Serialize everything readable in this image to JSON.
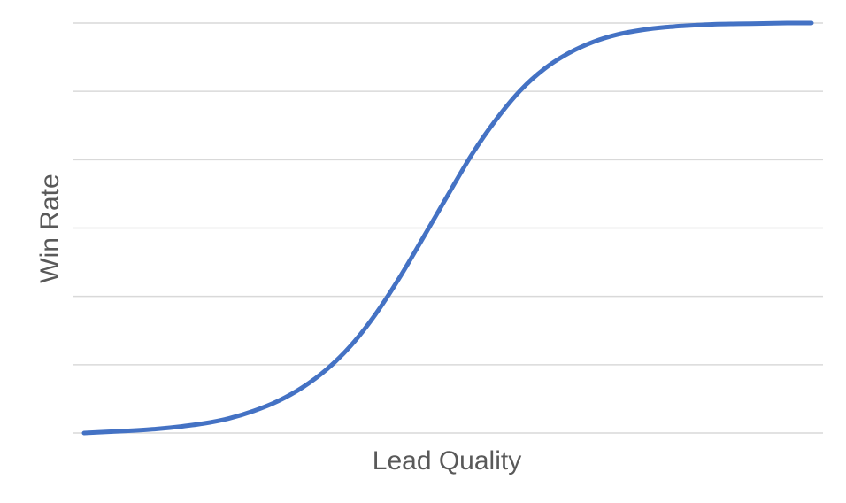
{
  "chart_data": {
    "type": "line",
    "title": "",
    "xlabel": "Lead Quality",
    "ylabel": "Win Rate",
    "x": [
      0,
      1,
      2,
      3,
      4,
      5,
      6,
      7,
      8,
      9,
      10,
      11,
      12,
      13,
      14,
      15,
      16,
      17,
      18,
      19,
      20,
      21,
      22,
      23,
      24,
      25,
      26,
      27,
      28,
      29,
      30
    ],
    "series": [
      {
        "values": [
          0.0,
          0.003,
          0.006,
          0.01,
          0.016,
          0.024,
          0.036,
          0.054,
          0.078,
          0.111,
          0.155,
          0.213,
          0.288,
          0.378,
          0.478,
          0.58,
          0.68,
          0.765,
          0.836,
          0.889,
          0.927,
          0.954,
          0.972,
          0.983,
          0.99,
          0.994,
          0.997,
          0.998,
          0.999,
          1.0,
          1.0
        ],
        "color": "#4472C4"
      }
    ],
    "ylim": [
      0,
      1.0
    ],
    "y_gridlines": [
      0,
      0.1667,
      0.3333,
      0.5,
      0.6667,
      0.8333,
      1.0
    ],
    "tick_labels_shown": false,
    "legend": "none",
    "grid": true
  }
}
